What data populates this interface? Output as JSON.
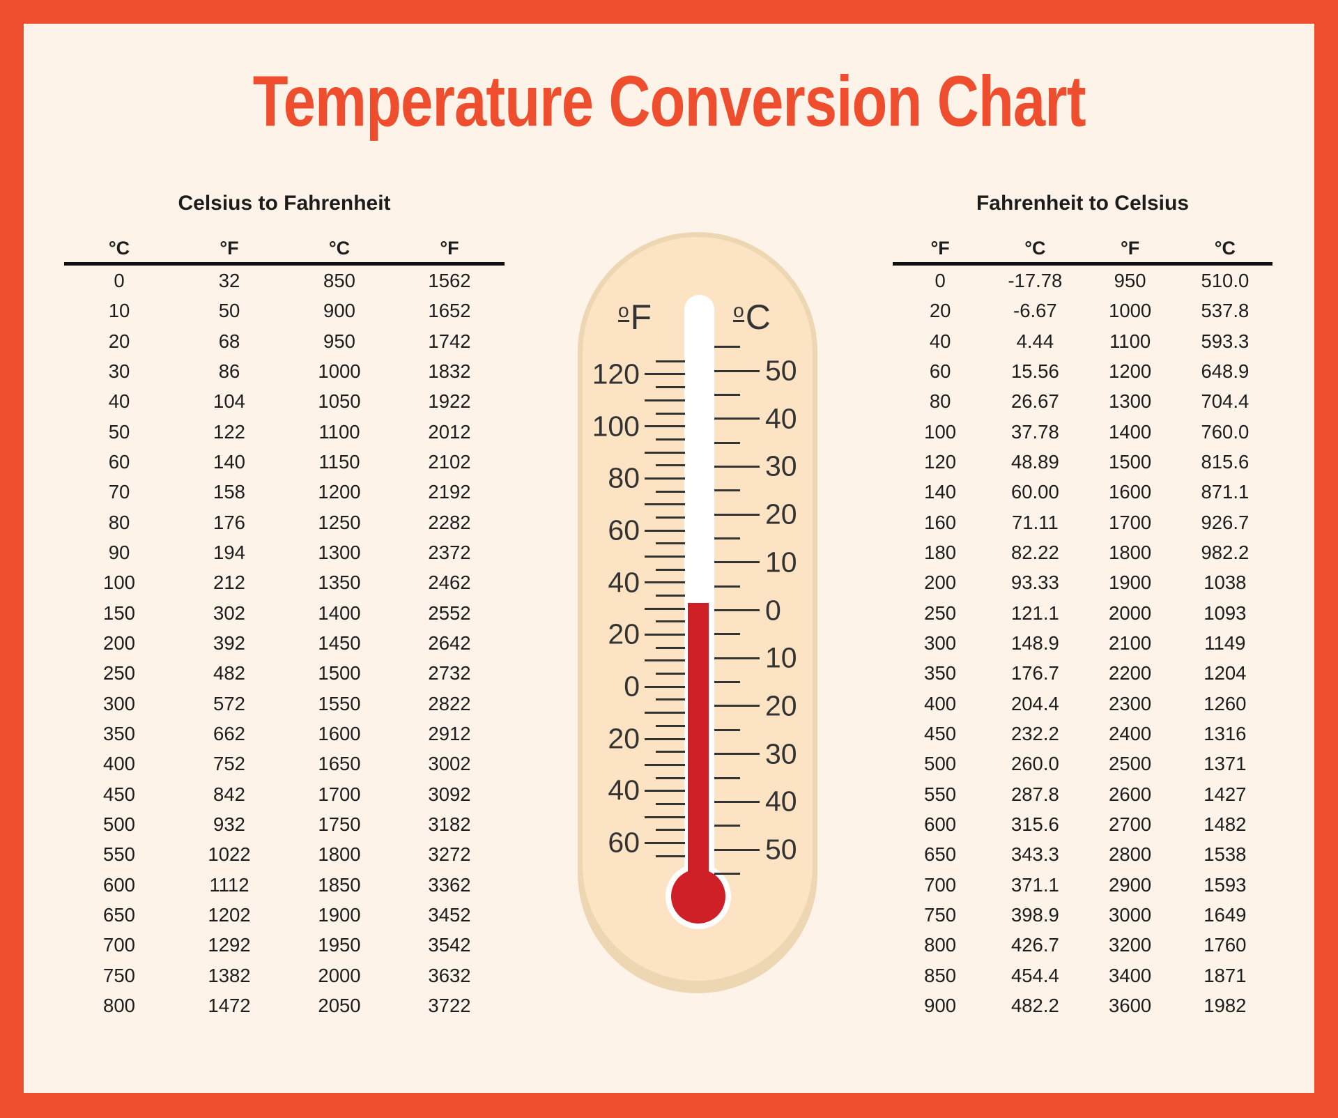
{
  "title": "Temperature Conversion Chart",
  "left_table": {
    "title": "Celsius to Fahrenheit",
    "headers": [
      "°C",
      "°F",
      "°C",
      "°F"
    ],
    "rows": [
      [
        "0",
        "32",
        "850",
        "1562"
      ],
      [
        "10",
        "50",
        "900",
        "1652"
      ],
      [
        "20",
        "68",
        "950",
        "1742"
      ],
      [
        "30",
        "86",
        "1000",
        "1832"
      ],
      [
        "40",
        "104",
        "1050",
        "1922"
      ],
      [
        "50",
        "122",
        "1100",
        "2012"
      ],
      [
        "60",
        "140",
        "1150",
        "2102"
      ],
      [
        "70",
        "158",
        "1200",
        "2192"
      ],
      [
        "80",
        "176",
        "1250",
        "2282"
      ],
      [
        "90",
        "194",
        "1300",
        "2372"
      ],
      [
        "100",
        "212",
        "1350",
        "2462"
      ],
      [
        "150",
        "302",
        "1400",
        "2552"
      ],
      [
        "200",
        "392",
        "1450",
        "2642"
      ],
      [
        "250",
        "482",
        "1500",
        "2732"
      ],
      [
        "300",
        "572",
        "1550",
        "2822"
      ],
      [
        "350",
        "662",
        "1600",
        "2912"
      ],
      [
        "400",
        "752",
        "1650",
        "3002"
      ],
      [
        "450",
        "842",
        "1700",
        "3092"
      ],
      [
        "500",
        "932",
        "1750",
        "3182"
      ],
      [
        "550",
        "1022",
        "1800",
        "3272"
      ],
      [
        "600",
        "1112",
        "1850",
        "3362"
      ],
      [
        "650",
        "1202",
        "1900",
        "3452"
      ],
      [
        "700",
        "1292",
        "1950",
        "3542"
      ],
      [
        "750",
        "1382",
        "2000",
        "3632"
      ],
      [
        "800",
        "1472",
        "2050",
        "3722"
      ]
    ]
  },
  "right_table": {
    "title": "Fahrenheit to Celsius",
    "headers": [
      "°F",
      "°C",
      "°F",
      "°C"
    ],
    "rows": [
      [
        "0",
        "-17.78",
        "950",
        "510.0"
      ],
      [
        "20",
        "-6.67",
        "1000",
        "537.8"
      ],
      [
        "40",
        "4.44",
        "1100",
        "593.3"
      ],
      [
        "60",
        "15.56",
        "1200",
        "648.9"
      ],
      [
        "80",
        "26.67",
        "1300",
        "704.4"
      ],
      [
        "100",
        "37.78",
        "1400",
        "760.0"
      ],
      [
        "120",
        "48.89",
        "1500",
        "815.6"
      ],
      [
        "140",
        "60.00",
        "1600",
        "871.1"
      ],
      [
        "160",
        "71.11",
        "1700",
        "926.7"
      ],
      [
        "180",
        "82.22",
        "1800",
        "982.2"
      ],
      [
        "200",
        "93.33",
        "1900",
        "1038"
      ],
      [
        "250",
        "121.1",
        "2000",
        "1093"
      ],
      [
        "300",
        "148.9",
        "2100",
        "1149"
      ],
      [
        "350",
        "176.7",
        "2200",
        "1204"
      ],
      [
        "400",
        "204.4",
        "2300",
        "1260"
      ],
      [
        "450",
        "232.2",
        "2400",
        "1316"
      ],
      [
        "500",
        "260.0",
        "2500",
        "1371"
      ],
      [
        "550",
        "287.8",
        "2600",
        "1427"
      ],
      [
        "600",
        "315.6",
        "2700",
        "1482"
      ],
      [
        "650",
        "343.3",
        "2800",
        "1538"
      ],
      [
        "700",
        "371.1",
        "2900",
        "1593"
      ],
      [
        "750",
        "398.9",
        "3000",
        "1649"
      ],
      [
        "800",
        "426.7",
        "3200",
        "1760"
      ],
      [
        "850",
        "454.4",
        "3400",
        "1871"
      ],
      [
        "900",
        "482.2",
        "3600",
        "1982"
      ]
    ]
  },
  "thermometer": {
    "scale_f_title": "ºF",
    "scale_c_title": "ºC",
    "f_scale": {
      "unit": "°F",
      "tick_max": 125,
      "tick_min": -65,
      "tick_step": 5,
      "major_every": 10,
      "labels": [
        "120",
        "100",
        "80",
        "60",
        "40",
        "20",
        "0",
        "20",
        "40",
        "60"
      ]
    },
    "c_scale": {
      "unit": "°C",
      "tick_max": 55,
      "tick_min": -55,
      "tick_step": 5,
      "major_every": 10,
      "labels": [
        "50",
        "40",
        "30",
        "20",
        "10",
        "0",
        "10",
        "20",
        "30",
        "40",
        "50"
      ]
    },
    "mercury_level_c": 0
  },
  "colors": {
    "accent": "#EE4E2E",
    "background": "#FDF3E8",
    "thermometer_body": "#FBE3C3",
    "thermometer_edge": "#EDD6B2",
    "mercury": "#CE2026",
    "text": "#1C1C1C",
    "scale_text": "#333333"
  },
  "chart_data": {
    "type": "table",
    "title": "Temperature Conversion Chart",
    "tables": [
      {
        "name": "Celsius to Fahrenheit",
        "columns": [
          "°C",
          "°F",
          "°C",
          "°F"
        ],
        "celsius": [
          0,
          10,
          20,
          30,
          40,
          50,
          60,
          70,
          80,
          90,
          100,
          150,
          200,
          250,
          300,
          350,
          400,
          450,
          500,
          550,
          600,
          650,
          700,
          750,
          800,
          850,
          900,
          950,
          1000,
          1050,
          1100,
          1150,
          1200,
          1250,
          1300,
          1350,
          1400,
          1450,
          1500,
          1550,
          1600,
          1650,
          1700,
          1750,
          1800,
          1850,
          1900,
          1950,
          2000,
          2050
        ],
        "fahrenheit": [
          32,
          50,
          68,
          86,
          104,
          122,
          140,
          158,
          176,
          194,
          212,
          302,
          392,
          482,
          572,
          662,
          752,
          842,
          932,
          1022,
          1112,
          1202,
          1292,
          1382,
          1472,
          1562,
          1652,
          1742,
          1832,
          1922,
          2012,
          2102,
          2192,
          2282,
          2372,
          2462,
          2552,
          2642,
          2732,
          2822,
          2912,
          3002,
          3092,
          3182,
          3272,
          3362,
          3452,
          3542,
          3632,
          3722
        ]
      },
      {
        "name": "Fahrenheit to Celsius",
        "columns": [
          "°F",
          "°C",
          "°F",
          "°C"
        ],
        "fahrenheit": [
          0,
          20,
          40,
          60,
          80,
          100,
          120,
          140,
          160,
          180,
          200,
          250,
          300,
          350,
          400,
          450,
          500,
          550,
          600,
          650,
          700,
          750,
          800,
          850,
          900,
          950,
          1000,
          1100,
          1200,
          1300,
          1400,
          1500,
          1600,
          1700,
          1800,
          1900,
          2000,
          2100,
          2200,
          2300,
          2400,
          2500,
          2600,
          2700,
          2800,
          2900,
          3000,
          3200,
          3400,
          3600
        ],
        "celsius": [
          -17.78,
          -6.67,
          4.44,
          15.56,
          26.67,
          37.78,
          48.89,
          60.0,
          71.11,
          82.22,
          93.33,
          121.1,
          148.9,
          176.7,
          204.4,
          232.2,
          260.0,
          287.8,
          315.6,
          343.3,
          371.1,
          398.9,
          426.7,
          454.4,
          482.2,
          510.0,
          537.8,
          593.3,
          648.9,
          704.4,
          760.0,
          815.6,
          871.1,
          926.7,
          982.2,
          1038,
          1093,
          1149,
          1204,
          1260,
          1316,
          1371,
          1427,
          1482,
          1538,
          1593,
          1649,
          1760,
          1871,
          1982
        ]
      }
    ],
    "thermometer_graphic": {
      "fahrenheit_scale_range": [
        -65,
        125
      ],
      "celsius_scale_range": [
        -55,
        55
      ],
      "mercury_reading_c": 0
    }
  }
}
